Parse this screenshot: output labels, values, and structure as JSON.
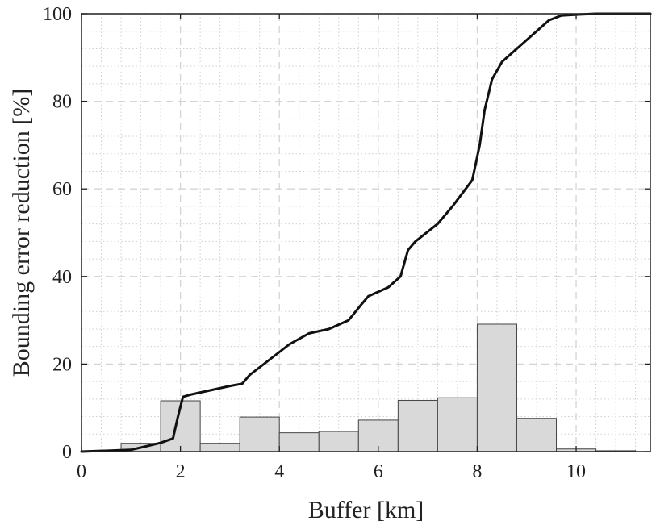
{
  "chart_data": {
    "type": "bar",
    "xlabel": "Buffer [km]",
    "ylabel": "Bounding error reduction [%]",
    "xlim": [
      0,
      11.5
    ],
    "ylim": [
      0,
      100
    ],
    "xticks": [
      0,
      2,
      4,
      6,
      8,
      10
    ],
    "yticks": [
      0,
      20,
      40,
      60,
      80,
      100
    ],
    "grid": true,
    "histogram": {
      "bin_width": 0.8,
      "bin_starts": [
        0.0,
        0.8,
        1.6,
        2.4,
        3.2,
        4.0,
        4.8,
        5.6,
        6.4,
        7.2,
        8.0,
        8.8,
        9.6,
        10.4
      ],
      "values": [
        0.2,
        1.9,
        11.6,
        1.9,
        7.9,
        4.3,
        4.6,
        7.2,
        11.7,
        12.3,
        29.1,
        7.6,
        0.6,
        0.2
      ]
    },
    "series": [
      {
        "type": "line",
        "x": [
          0,
          1.0,
          1.3,
          1.6,
          1.85,
          1.95,
          2.05,
          2.2,
          2.6,
          3.0,
          3.25,
          3.4,
          3.8,
          4.2,
          4.6,
          5.0,
          5.4,
          5.65,
          5.8,
          6.2,
          6.45,
          6.6,
          6.75,
          7.2,
          7.5,
          7.9,
          8.05,
          8.15,
          8.3,
          8.5,
          8.9,
          9.2,
          9.45,
          9.7,
          10.0,
          10.4,
          11.5
        ],
        "y": [
          0,
          0.4,
          1.2,
          2.0,
          3.0,
          8.0,
          12.5,
          13.0,
          14.0,
          15.0,
          15.5,
          17.5,
          21.0,
          24.5,
          27.0,
          28.0,
          30.0,
          33.5,
          35.5,
          37.5,
          40.0,
          46.0,
          48.0,
          52.0,
          56.0,
          62.0,
          70.0,
          78.0,
          85.0,
          89.0,
          93.0,
          96.0,
          98.5,
          99.6,
          99.8,
          100.0,
          100.0
        ]
      }
    ]
  }
}
